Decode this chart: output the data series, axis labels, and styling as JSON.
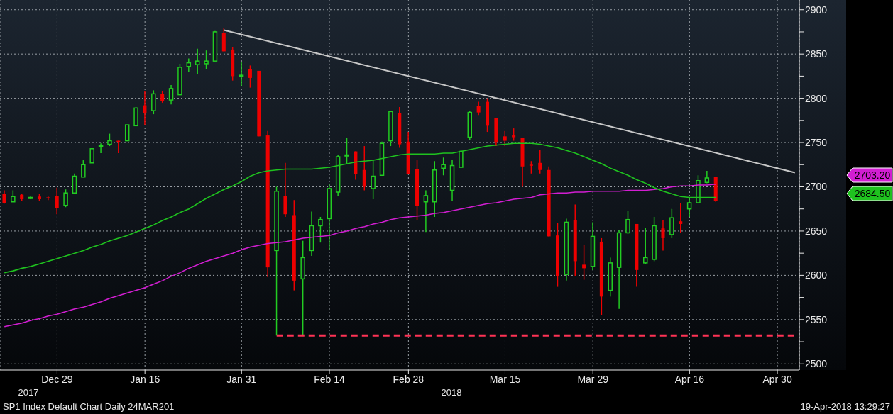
{
  "chart_data": {
    "type": "candlestick",
    "categories": [
      null,
      null,
      null,
      null,
      null,
      null,
      "Dec 29",
      null,
      null,
      null,
      null,
      null,
      null,
      null,
      null,
      null,
      "Jan 16",
      null,
      null,
      null,
      null,
      null,
      null,
      null,
      null,
      null,
      null,
      "Jan 31",
      null,
      null,
      null,
      null,
      null,
      null,
      null,
      null,
      null,
      "Feb 14",
      null,
      null,
      null,
      null,
      null,
      null,
      null,
      null,
      "Feb 28",
      null,
      null,
      null,
      null,
      null,
      null,
      null,
      null,
      null,
      null,
      "Mar 15",
      null,
      null,
      null,
      null,
      null,
      null,
      null,
      null,
      null,
      "Mar 29",
      null,
      null,
      null,
      null,
      null,
      null,
      null,
      null,
      null,
      null,
      "Apr 16",
      null,
      null,
      null,
      null,
      null,
      null,
      null,
      null,
      null,
      "Apr 30",
      null,
      null
    ],
    "ohlc": [
      [
        2692,
        2696,
        2681,
        2682
      ],
      [
        2683,
        2696,
        2683,
        2689
      ],
      [
        2691,
        2692,
        2684,
        2686
      ],
      [
        2687,
        2689,
        2686,
        2688
      ],
      [
        2689,
        2692,
        2684,
        2686
      ],
      [
        2688,
        2689,
        2685,
        2687
      ],
      [
        2690,
        2699,
        2669,
        2676
      ],
      [
        2679,
        2697,
        2677,
        2693
      ],
      [
        2693,
        2715,
        2693,
        2712
      ],
      [
        2711,
        2730,
        2711,
        2725
      ],
      [
        2727,
        2743,
        2727,
        2743
      ],
      [
        2746,
        2749,
        2738,
        2747
      ],
      [
        2748,
        2760,
        2746,
        2752
      ],
      [
        2752,
        2752,
        2738,
        2750
      ],
      [
        2752,
        2770,
        2752,
        2770
      ],
      [
        2769,
        2790,
        2769,
        2789
      ],
      [
        2792,
        2808,
        2770,
        2783
      ],
      [
        2786,
        2809,
        2782,
        2805
      ],
      [
        2805,
        2808,
        2795,
        2797
      ],
      [
        2798,
        2815,
        2793,
        2811
      ],
      [
        2804,
        2839,
        2804,
        2835
      ],
      [
        2836,
        2845,
        2830,
        2840
      ],
      [
        2838,
        2856,
        2827,
        2842
      ],
      [
        2839,
        2854,
        2833,
        2842
      ],
      [
        2842,
        2876,
        2842,
        2875
      ],
      [
        2874,
        2879,
        2853,
        2853
      ],
      [
        2855,
        2858,
        2820,
        2825
      ],
      [
        2825,
        2841,
        2814,
        2826
      ],
      [
        2833,
        2837,
        2812,
        2823
      ],
      [
        2831,
        2831,
        2757,
        2757
      ],
      [
        2758,
        2763,
        2598,
        2609
      ],
      [
        2628,
        2700,
        2532,
        2695
      ],
      [
        2690,
        2727,
        2666,
        2669
      ],
      [
        2668,
        2685,
        2583,
        2594
      ],
      [
        2596,
        2639,
        2532,
        2620
      ],
      [
        2628,
        2672,
        2622,
        2656
      ],
      [
        2656,
        2666,
        2637,
        2663
      ],
      [
        2664,
        2703,
        2629,
        2698
      ],
      [
        2694,
        2736,
        2690,
        2734
      ],
      [
        2735,
        2755,
        2726,
        2736
      ],
      [
        2740,
        2740,
        2708,
        2714
      ],
      [
        2719,
        2746,
        2696,
        2700
      ],
      [
        2698,
        2730,
        2686,
        2712
      ],
      [
        2713,
        2751,
        2713,
        2749
      ],
      [
        2752,
        2785,
        2746,
        2785
      ],
      [
        2783,
        2790,
        2744,
        2748
      ],
      [
        2751,
        2762,
        2714,
        2714
      ],
      [
        2720,
        2730,
        2662,
        2678
      ],
      [
        2683,
        2696,
        2649,
        2690
      ],
      [
        2683,
        2729,
        2666,
        2719
      ],
      [
        2721,
        2733,
        2713,
        2725
      ],
      [
        2696,
        2730,
        2684,
        2724
      ],
      [
        2722,
        2741,
        2722,
        2740
      ],
      [
        2756,
        2786,
        2753,
        2784
      ],
      [
        2791,
        2796,
        2781,
        2784
      ],
      [
        2796,
        2800,
        2762,
        2769
      ],
      [
        2778,
        2778,
        2746,
        2750
      ],
      [
        2757,
        2763,
        2746,
        2752
      ],
      [
        2758,
        2766,
        2752,
        2756
      ],
      [
        2755,
        2755,
        2700,
        2723
      ],
      [
        2725,
        2729,
        2715,
        2724
      ],
      [
        2727,
        2742,
        2715,
        2719
      ],
      [
        2719,
        2723,
        2644,
        2644
      ],
      [
        2645,
        2659,
        2587,
        2599
      ],
      [
        2601,
        2664,
        2594,
        2660
      ],
      [
        2662,
        2680,
        2599,
        2616
      ],
      [
        2612,
        2634,
        2595,
        2608
      ],
      [
        2610,
        2660,
        2606,
        2644
      ],
      [
        2638,
        2642,
        2555,
        2576
      ],
      [
        2583,
        2620,
        2576,
        2614
      ],
      [
        2609,
        2651,
        2562,
        2648
      ],
      [
        2648,
        2673,
        2647,
        2663
      ],
      [
        2658,
        2658,
        2587,
        2606
      ],
      [
        2614,
        2654,
        2613,
        2620
      ],
      [
        2618,
        2666,
        2616,
        2656
      ],
      [
        2653,
        2662,
        2628,
        2642
      ],
      [
        2646,
        2675,
        2642,
        2665
      ],
      [
        2661,
        2682,
        2648,
        2658
      ],
      [
        2675,
        2688,
        2666,
        2682
      ],
      [
        2682,
        2713,
        2682,
        2707
      ],
      [
        2705,
        2718,
        2704,
        2710
      ],
      [
        2711,
        2711,
        2683,
        2684
      ],
      null,
      null,
      null,
      null,
      null,
      null,
      null,
      null,
      null
    ],
    "colors": [
      "#ee0000",
      "#22cc22",
      "#ee0000",
      "#22cc22",
      "#ee0000",
      "#ee0000",
      "#ee0000",
      "#22cc22",
      "#22cc22",
      "#22cc22",
      "#22cc22",
      "#22cc22",
      "#22cc22",
      "#ee0000",
      "#22cc22",
      "#22cc22",
      "#ee0000",
      "#22cc22",
      "#ee0000",
      "#22cc22",
      "#22cc22",
      "#22cc22",
      "#22cc22",
      "#22cc22",
      "#22cc22",
      "#ee0000",
      "#ee0000",
      "#22cc22",
      "#ee0000",
      "#ee0000",
      "#ee0000",
      "#22cc22",
      "#ee0000",
      "#ee0000",
      "#22cc22",
      "#22cc22",
      "#22cc22",
      "#22cc22",
      "#22cc22",
      "#22cc22",
      "#ee0000",
      "#ee0000",
      "#22cc22",
      "#22cc22",
      "#22cc22",
      "#ee0000",
      "#ee0000",
      "#ee0000",
      "#22cc22",
      "#22cc22",
      "#22cc22",
      "#22cc22",
      "#22cc22",
      "#22cc22",
      "#ee0000",
      "#ee0000",
      "#ee0000",
      "#ee0000",
      "#ee0000",
      "#ee0000",
      "#ee0000",
      "#ee0000",
      "#ee0000",
      "#ee0000",
      "#22cc22",
      "#ee0000",
      "#ee0000",
      "#22cc22",
      "#ee0000",
      "#22cc22",
      "#22cc22",
      "#22cc22",
      "#ee0000",
      "#22cc22",
      "#22cc22",
      "#ee0000",
      "#22cc22",
      "#ee0000",
      "#22cc22",
      "#22cc22",
      "#22cc22",
      "#ee0000",
      null,
      null,
      null,
      null,
      null,
      null,
      null,
      null,
      null
    ],
    "series": [
      {
        "type": "line",
        "color": "#d21ed2",
        "values": [
          2542,
          2544,
          2546,
          2549,
          2551,
          2554,
          2556,
          2559,
          2562,
          2564,
          2567,
          2570,
          2574,
          2577,
          2580,
          2583,
          2586,
          2590,
          2594,
          2599,
          2603,
          2608,
          2612,
          2616,
          2619,
          2622,
          2625,
          2629,
          2632,
          2634,
          2636,
          2637,
          2638,
          2640,
          2642,
          2643,
          2644,
          2645,
          2648,
          2650,
          2653,
          2655,
          2658,
          2660,
          2663,
          2665,
          2666,
          2667,
          2668,
          2670,
          2671,
          2673,
          2675,
          2677,
          2679,
          2681,
          2682,
          2684,
          2686,
          2687,
          2688,
          2691,
          2692,
          2693,
          2693,
          2694,
          2694,
          2695,
          2695,
          2695,
          2695,
          2696,
          2696,
          2696,
          2697,
          2698,
          2700,
          2701,
          2701,
          2702,
          2702,
          2703,
          null,
          null,
          null,
          null,
          null,
          null,
          null,
          null,
          null
        ]
      },
      {
        "type": "line",
        "color": "#1fc21f",
        "values": [
          2603,
          2605,
          2608,
          2610,
          2613,
          2616,
          2619,
          2622,
          2625,
          2628,
          2632,
          2635,
          2639,
          2642,
          2645,
          2649,
          2653,
          2657,
          2662,
          2666,
          2671,
          2675,
          2681,
          2687,
          2692,
          2697,
          2701,
          2706,
          2712,
          2716,
          2718,
          2719,
          2720,
          2720,
          2720,
          2720,
          2721,
          2722,
          2724,
          2726,
          2728,
          2729,
          2730,
          2732,
          2734,
          2736,
          2737,
          2737,
          2737,
          2737,
          2738,
          2738,
          2740,
          2742,
          2744,
          2746,
          2747,
          2748,
          2749,
          2749,
          2749,
          2748,
          2746,
          2744,
          2741,
          2738,
          2734,
          2730,
          2726,
          2721,
          2717,
          2713,
          2708,
          2704,
          2699,
          2695,
          2692,
          2689,
          2688,
          2688,
          2688,
          2688,
          null,
          null,
          null,
          null,
          null,
          null,
          null,
          null,
          null
        ]
      },
      {
        "type": "line",
        "color": "#c8c8c8",
        "values": [
          null,
          null,
          null,
          null,
          null,
          null,
          null,
          null,
          null,
          null,
          null,
          null,
          null,
          null,
          null,
          null,
          null,
          null,
          null,
          null,
          null,
          null,
          null,
          null,
          null,
          2877,
          null,
          null,
          null,
          null,
          null,
          null,
          null,
          null,
          null,
          null,
          null,
          null,
          null,
          null,
          null,
          null,
          null,
          null,
          null,
          null,
          null,
          null,
          null,
          null,
          null,
          null,
          null,
          null,
          null,
          null,
          null,
          null,
          null,
          null,
          null,
          null,
          null,
          null,
          null,
          null,
          null,
          null,
          null,
          null,
          null,
          null,
          null,
          null,
          null,
          null,
          null,
          null,
          null,
          null,
          null,
          null,
          null,
          null,
          null,
          null,
          null,
          null,
          null,
          null,
          2716
        ]
      }
    ],
    "ylim": [
      2493,
      2911
    ],
    "yticks": [
      2500,
      {
        "value": 2525,
        "label": null
      },
      2550,
      {
        "value": 2575,
        "label": null
      },
      2600,
      {
        "value": 2625,
        "label": null
      },
      2650,
      {
        "value": 2675,
        "label": null
      },
      2700,
      {
        "value": 2725,
        "label": null
      },
      2750,
      {
        "value": 2775,
        "label": null
      },
      2800,
      {
        "value": 2825,
        "label": null
      },
      2850,
      {
        "value": 2875,
        "label": null
      },
      2900
    ],
    "grid": true,
    "ref_lines": [
      {
        "axis": "y",
        "value": 2532,
        "color": "#ff3355",
        "line_style": "dashed"
      }
    ],
    "annotations": [
      "2017",
      "2018",
      "SP1 Index Default Chart Daily 24MAR201",
      "19-Apr-2018 13:29:27",
      "2703.20",
      "2684.50"
    ]
  }
}
